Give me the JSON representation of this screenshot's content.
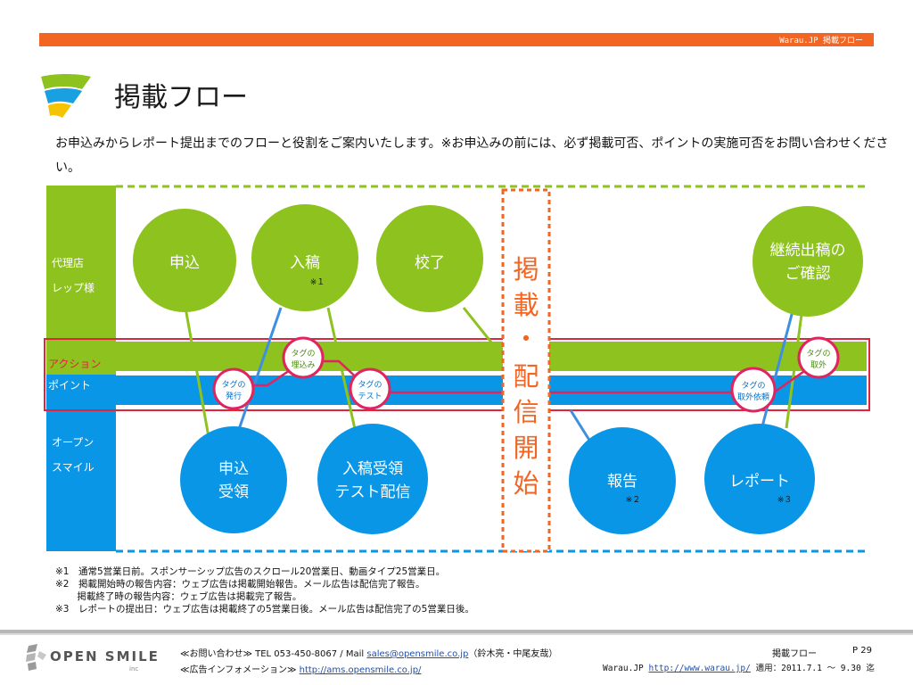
{
  "header": {
    "bar_text": "Warau.JP 掲載フロー",
    "title": "掲載フロー",
    "accent_color": "#f26522"
  },
  "intro": "お申込みからレポート提出までのフローと役割をご案内いたします。※お申込みの前には、必ず掲載可否、ポイントの実施可否をお問い合わせください。",
  "lanes": {
    "agency_line1": "代理店",
    "agency_line2": "レップ様",
    "action": "アクション",
    "point": "ポイント",
    "opensmile_line1": "オープン",
    "opensmile_line2": "スマイル"
  },
  "nodes": {
    "apply": "申込",
    "submit": "入稿",
    "submit_note": "※１",
    "proof": "校了",
    "continue_line1": "継続出稿の",
    "continue_line2": "ご確認",
    "receive_line1": "申込",
    "receive_line2": "受領",
    "submit_receive_line1": "入稿受領",
    "submit_receive_line2": "テスト配信",
    "report": "報告",
    "report_note": "※２",
    "report2": "レポート",
    "report2_note": "※３"
  },
  "tags": {
    "issue_line1": "タグの",
    "issue_line2": "発行",
    "embed_line1": "タグの",
    "embed_line2": "埋込み",
    "test_line1": "タグの",
    "test_line2": "テスト",
    "remove_line1": "タグの",
    "remove_line2": "取外",
    "remove_req_line1": "タグの",
    "remove_req_line2": "取外依頼"
  },
  "milestone": [
    "掲",
    "載",
    "・",
    "配",
    "信",
    "開",
    "始"
  ],
  "footnotes": [
    "※1　通常5営業日前。スポンサーシップ広告のスクロール20営業日、動画タイプ25営業日。",
    "※2　掲載開始時の報告内容：ウェブ広告は掲載開始報告。メール広告は配信完了報告。",
    "　　  掲載終了時の報告内容：ウェブ広告は掲載完了報告。",
    "※3　レポートの提出日：ウェブ広告は掲載終了の5営業日後。メール広告は配信完了の5営業日後。"
  ],
  "footer": {
    "logo_text": "OPEN SMILE",
    "logo_sub": "inc",
    "contact_prefix": "≪お問い合わせ≫ TEL 053-450-8067 / Mail ",
    "contact_mail": "sales@opensmile.co.jp",
    "contact_suffix": "（鈴木亮・中尾友哉）",
    "info_prefix": "≪広告インフォメーション≫ ",
    "info_url": "http://ams.opensmile.co.jp/",
    "doc_title": "掲載フロー",
    "page": "P 29",
    "site_prefix": "Warau.JP ",
    "site_url": "http://www.warau.jp/",
    "applies": " 適用：2011.7.1 ～ 9.30 迄"
  },
  "colors": {
    "green": "#8dc21f",
    "blue": "#0a96e6",
    "pink": "#e0245e",
    "orange": "#f26522",
    "red_frame": "#e0243c"
  }
}
